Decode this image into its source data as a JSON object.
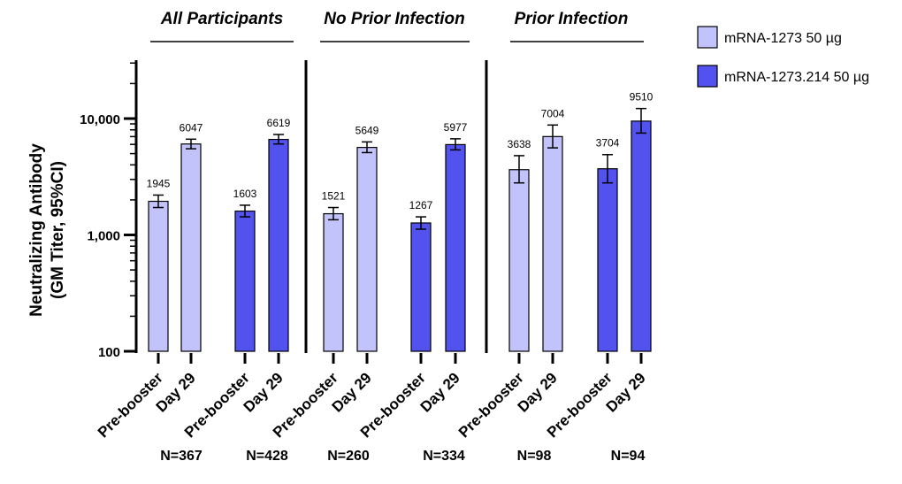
{
  "chart_data": {
    "type": "bar",
    "ylabel_line1": "Neutralizing Antibody",
    "ylabel_line2": "(GM Titer, 95%CI)",
    "yscale": "log",
    "ylim": [
      100,
      30000
    ],
    "yticks": [
      {
        "value": 100,
        "label": "100"
      },
      {
        "value": 1000,
        "label": "1,000"
      },
      {
        "value": 10000,
        "label": "10,000"
      }
    ],
    "colors": {
      "mRNA-1273": "#c2c3fa",
      "mRNA-1273.214": "#5252ee"
    },
    "legend_position": "top-right",
    "legend": [
      {
        "label": "mRNA-1273 50 µg",
        "color": "#c2c3fa"
      },
      {
        "label": "mRNA-1273.214 50 µg",
        "color": "#5252ee"
      }
    ],
    "groups": [
      {
        "title": "All Participants",
        "bars": [
          {
            "label": "Pre-booster",
            "value": 1945,
            "ci": [
              1720,
              2200
            ],
            "vaccine": "mRNA-1273"
          },
          {
            "label": "Day 29",
            "value": 6047,
            "ci": [
              5500,
              6650
            ],
            "vaccine": "mRNA-1273"
          },
          {
            "label": "Pre-booster",
            "value": 1603,
            "ci": [
              1430,
              1800
            ],
            "vaccine": "mRNA-1273.214"
          },
          {
            "label": "Day 29",
            "value": 6619,
            "ci": [
              6050,
              7300
            ],
            "vaccine": "mRNA-1273.214"
          }
        ],
        "n": [
          "N=367",
          "N=428"
        ]
      },
      {
        "title": "No Prior Infection",
        "bars": [
          {
            "label": "Pre-booster",
            "value": 1521,
            "ci": [
              1350,
              1720
            ],
            "vaccine": "mRNA-1273"
          },
          {
            "label": "Day 29",
            "value": 5649,
            "ci": [
              5100,
              6300
            ],
            "vaccine": "mRNA-1273"
          },
          {
            "label": "Pre-booster",
            "value": 1267,
            "ci": [
              1120,
              1430
            ],
            "vaccine": "mRNA-1273.214"
          },
          {
            "label": "Day 29",
            "value": 5977,
            "ci": [
              5380,
              6700
            ],
            "vaccine": "mRNA-1273.214"
          }
        ],
        "n": [
          "N=260",
          "N=334"
        ]
      },
      {
        "title": "Prior Infection",
        "bars": [
          {
            "label": "Pre-booster",
            "value": 3638,
            "ci": [
              2800,
              4800
            ],
            "vaccine": "mRNA-1273"
          },
          {
            "label": "Day 29",
            "value": 7004,
            "ci": [
              5600,
              8800
            ],
            "vaccine": "mRNA-1273"
          },
          {
            "label": "Pre-booster",
            "value": 3704,
            "ci": [
              2800,
              4900
            ],
            "vaccine": "mRNA-1273.214"
          },
          {
            "label": "Day 29",
            "value": 9510,
            "ci": [
              7500,
              12200
            ],
            "vaccine": "mRNA-1273.214"
          }
        ],
        "n": [
          "N=98",
          "N=94"
        ]
      }
    ]
  }
}
